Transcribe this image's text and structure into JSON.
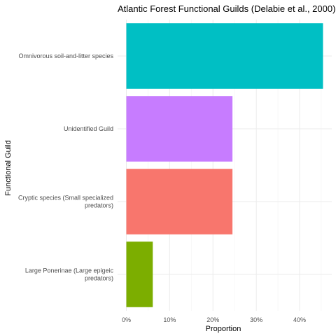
{
  "chart_data": {
    "type": "bar",
    "orientation": "horizontal",
    "title": "Atlantic Forest Functional Guilds (Delabie et al., 2000)",
    "xlabel": "Proportion",
    "ylabel": "Functional Guild",
    "xlim": [
      0,
      0.46
    ],
    "x_ticks": [
      0,
      0.1,
      0.2,
      0.3,
      0.4
    ],
    "x_tick_labels": [
      "0%",
      "10%",
      "20%",
      "30%",
      "40%"
    ],
    "grid": true,
    "legend": "none",
    "categories": [
      [
        "Omnivorous soil-and-litter species"
      ],
      [
        "Unidentified Guild"
      ],
      [
        "Cryptic species (Small specialized",
        "predators)"
      ],
      [
        "Large Ponerinae (Large epigeic",
        "predators)"
      ]
    ],
    "values": [
      0.454,
      0.245,
      0.245,
      0.061
    ],
    "colors": [
      "#00BFC4",
      "#C77CFF",
      "#F8766D",
      "#7CAE00"
    ]
  }
}
